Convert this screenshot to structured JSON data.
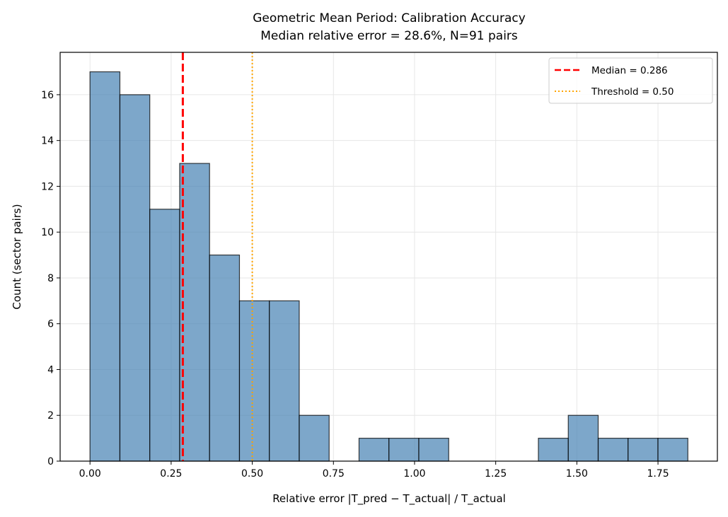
{
  "chart_data": {
    "type": "bar",
    "title": "Geometric Mean Period: Calibration Accuracy",
    "subtitle": "Median relative error = 28.6%, N=91 pairs",
    "xlabel": "Relative error |T_pred − T_actual| / T_actual",
    "ylabel": "Count (sector pairs)",
    "bin_edges_start": 0.0,
    "bin_width": 0.0921,
    "counts": [
      17,
      16,
      11,
      13,
      9,
      7,
      7,
      2,
      0,
      1,
      1,
      1,
      0,
      0,
      0,
      1,
      2,
      1,
      1,
      1
    ],
    "xlim": [
      -0.092,
      1.933
    ],
    "ylim": [
      0,
      17.85
    ],
    "xticks": [
      "0.00",
      "0.25",
      "0.50",
      "0.75",
      "1.00",
      "1.25",
      "1.50",
      "1.75"
    ],
    "xtick_values": [
      0,
      0.25,
      0.5,
      0.75,
      1.0,
      1.25,
      1.5,
      1.75
    ],
    "yticks": [
      "0",
      "2",
      "4",
      "6",
      "8",
      "10",
      "12",
      "14",
      "16"
    ],
    "ytick_values": [
      0,
      2,
      4,
      6,
      8,
      10,
      12,
      14,
      16
    ],
    "grid": true,
    "bar_color": "#4682b4",
    "lines": [
      {
        "name": "Median = 0.286",
        "x": 0.286,
        "color": "#ff0000",
        "style": "dashed"
      },
      {
        "name": "Threshold = 0.50",
        "x": 0.5,
        "color": "#ffa500",
        "style": "dotted"
      }
    ],
    "legend_position": "top-right"
  }
}
